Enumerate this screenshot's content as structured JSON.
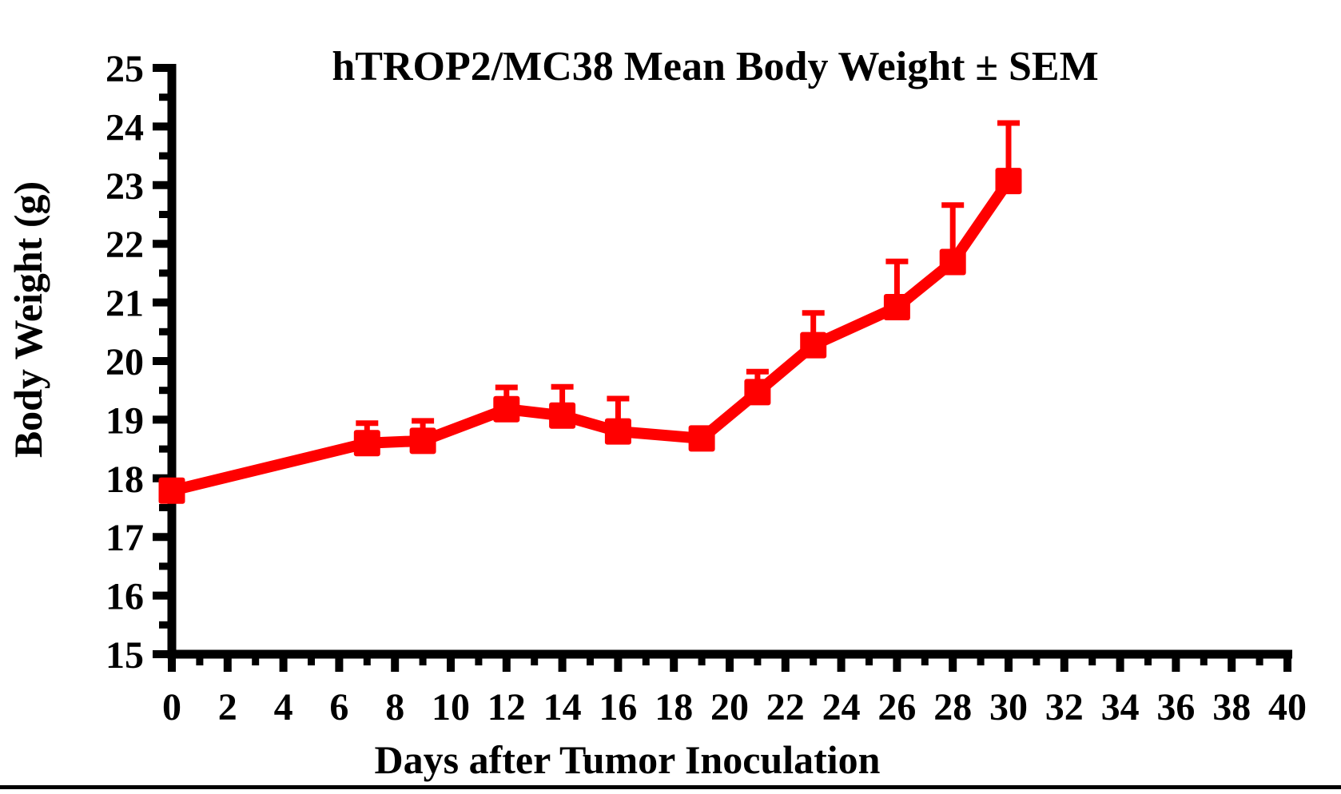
{
  "figure": {
    "background": "#ffffff",
    "axis_color": "#000000",
    "bottom_rule_color": "#000000"
  },
  "chart_data": {
    "type": "line",
    "title": "hTROP2/MC38 Mean Body Weight ± SEM",
    "xlabel": "Days after Tumor Inoculation",
    "ylabel": "Body Weight (g)",
    "xlim": [
      0,
      40
    ],
    "ylim": [
      15,
      25
    ],
    "x_major_step": 2,
    "x_minor_step": 1,
    "y_major_step": 1,
    "y_minor_step": 0.5,
    "x_tick_labels": [
      0,
      2,
      4,
      6,
      8,
      10,
      12,
      14,
      16,
      18,
      20,
      22,
      24,
      26,
      28,
      30,
      32,
      34,
      36,
      38,
      40
    ],
    "y_tick_labels": [
      15,
      16,
      17,
      18,
      19,
      20,
      21,
      22,
      23,
      24,
      25
    ],
    "grid": false,
    "legend": "none",
    "series": [
      {
        "name": "hTROP2/MC38",
        "color": "#ff0000",
        "marker": "square",
        "error_bars": "upper-only SEM with caps",
        "x": [
          0,
          7,
          9,
          12,
          14,
          16,
          19,
          21,
          23,
          26,
          28,
          30
        ],
        "y": [
          17.79,
          18.6,
          18.64,
          19.18,
          19.07,
          18.8,
          18.68,
          19.47,
          20.27,
          20.92,
          21.69,
          23.07
        ],
        "sem": [
          0,
          0.34,
          0.34,
          0.37,
          0.49,
          0.56,
          0,
          0.35,
          0.55,
          0.78,
          0.97,
          0.99
        ]
      }
    ]
  }
}
